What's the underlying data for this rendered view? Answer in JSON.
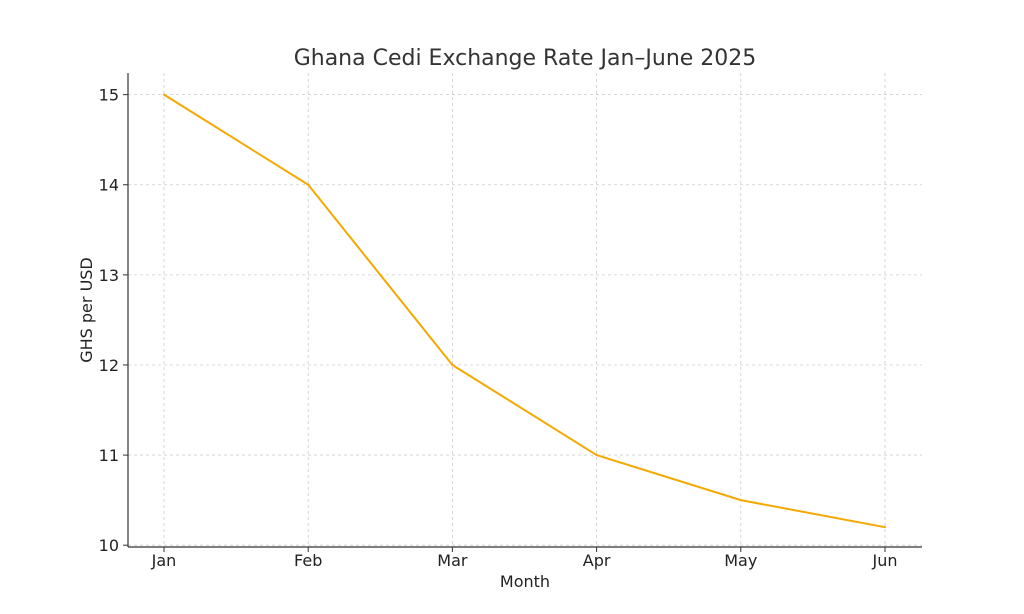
{
  "chart_data": {
    "type": "line",
    "title": "Ghana Cedi Exchange Rate Jan–June 2025",
    "xlabel": "Month",
    "ylabel": "GHS per USD",
    "categories": [
      "Jan",
      "Feb",
      "Mar",
      "Apr",
      "May",
      "Jun"
    ],
    "series": [
      {
        "values": [
          15.0,
          14.0,
          12.0,
          11.0,
          10.5,
          10.2
        ]
      }
    ],
    "ylim": [
      9.98,
      15.24
    ],
    "yticks": [
      10,
      11,
      12,
      13,
      14,
      15
    ],
    "grid": true,
    "grid_style": "dashed",
    "legend": "none",
    "line_color": "#f5a800",
    "grid_color": "#cccccc",
    "axis_color": "#333333"
  }
}
